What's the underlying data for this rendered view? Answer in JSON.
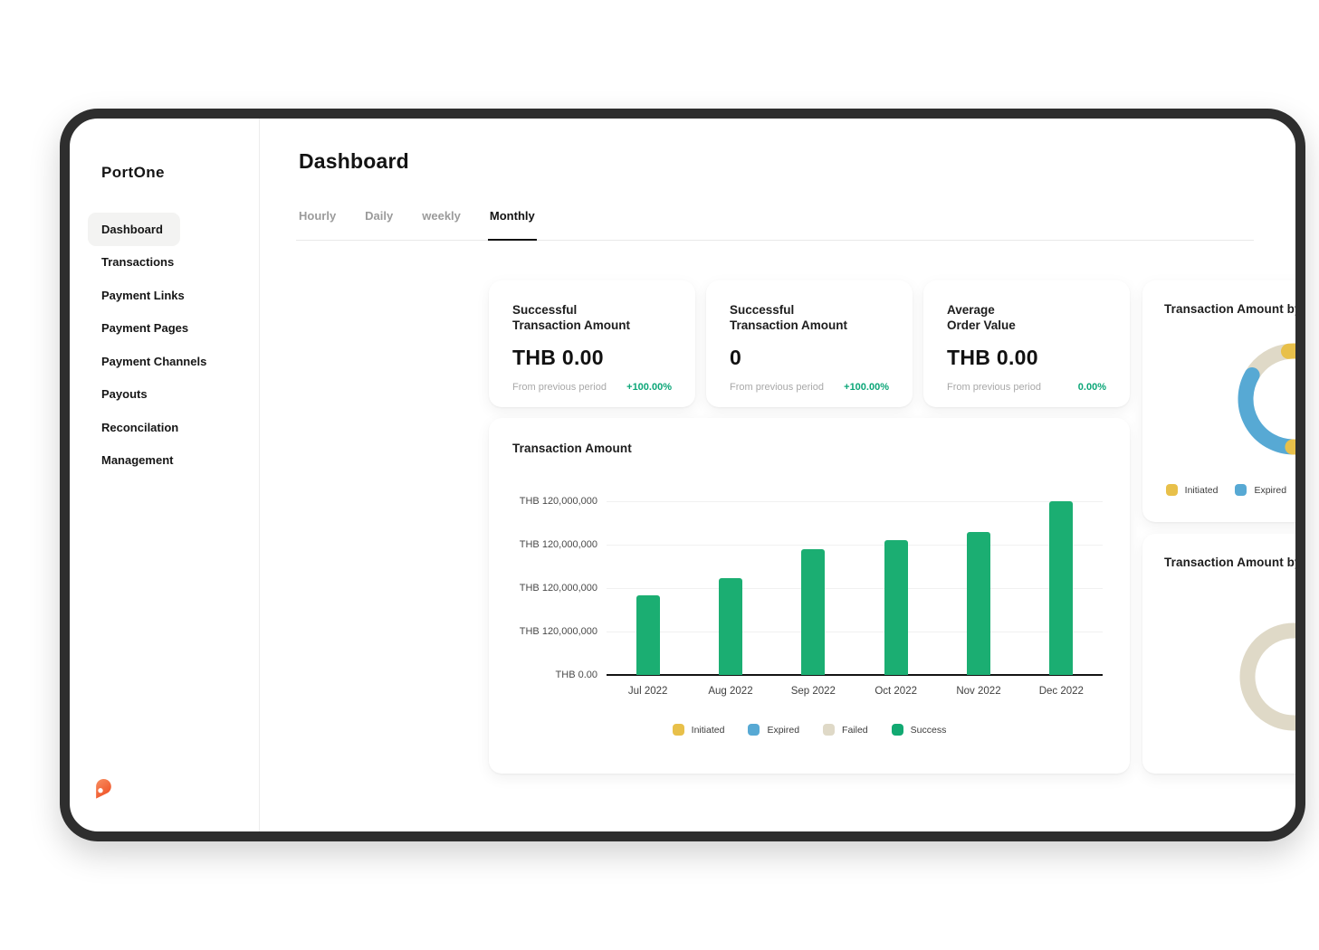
{
  "brand": {
    "logo_text": "PortOne"
  },
  "sidebar": {
    "items": [
      {
        "label": "Dashboard",
        "active": true
      },
      {
        "label": "Transactions",
        "active": false
      },
      {
        "label": "Payment Links",
        "active": false
      },
      {
        "label": "Payment Pages",
        "active": false
      },
      {
        "label": "Payment Channels",
        "active": false
      },
      {
        "label": "Payouts",
        "active": false
      },
      {
        "label": "Reconcilation",
        "active": false
      },
      {
        "label": "Management",
        "active": false
      }
    ]
  },
  "header": {
    "title": "Dashboard",
    "tabs": [
      {
        "label": "Hourly",
        "active": false
      },
      {
        "label": "Daily",
        "active": false
      },
      {
        "label": "weekly",
        "active": false
      },
      {
        "label": "Monthly",
        "active": true
      }
    ]
  },
  "stat_cards": [
    {
      "label_line1": "Successful",
      "label_line2": "Transaction Amount",
      "value": "THB 0.00",
      "footnote": "From previous period",
      "change": "+100.00%"
    },
    {
      "label_line1": "Successful",
      "label_line2": "Transaction Amount",
      "value": "0",
      "footnote": "From previous period",
      "change": "+100.00%"
    },
    {
      "label_line1": "Average",
      "label_line2": "Order Value",
      "value": "THB 0.00",
      "footnote": "From previous period",
      "change": "0.00%"
    }
  ],
  "chart_data": [
    {
      "type": "bar",
      "title": "Transaction Amount",
      "categories": [
        "Jul 2022",
        "Aug 2022",
        "Sep 2022",
        "Oct 2022",
        "Nov 2022",
        "Dec 2022"
      ],
      "series": [
        {
          "name": "Success",
          "color": "#1bae72",
          "values": [
            55000000,
            67000000,
            87000000,
            93000000,
            99000000,
            120000000
          ]
        }
      ],
      "ylim": [
        0,
        120000000
      ],
      "y_tick_labels": [
        "THB 120,000,000",
        "THB 120,000,000",
        "THB 120,000,000",
        "THB 120,000,000",
        "THB 0.00"
      ],
      "grid": true,
      "legend_position": "bottom",
      "legend": [
        {
          "label": "Initiated",
          "color": "#e8c04a"
        },
        {
          "label": "Expired",
          "color": "#57a9d4"
        },
        {
          "label": "Failed",
          "color": "#dfd9c7"
        },
        {
          "label": "Success",
          "color": "#12a972"
        }
      ]
    },
    {
      "type": "pie",
      "title": "Transaction Amount by Transaction Status",
      "segments": [
        {
          "label": "Initiated",
          "value": 52,
          "color": "#e8c04a"
        },
        {
          "label": "Expired",
          "value": 33,
          "color": "#57a9d4"
        },
        {
          "label": "Failed",
          "value": 15,
          "color": "#dfd9c7"
        },
        {
          "label": "Success",
          "value": 0,
          "color": "#12a972"
        }
      ],
      "legend_position": "bottom",
      "legend": [
        {
          "label": "Initiated",
          "color": "#e8c04a"
        },
        {
          "label": "Expired",
          "color": "#57a9d4"
        },
        {
          "label": "Failed",
          "color": "#dfd9c7"
        },
        {
          "label": "Success",
          "color": "#12a972"
        }
      ]
    },
    {
      "type": "pie",
      "title": "Transaction Amount by Payment Channel",
      "segments": [
        {
          "label": "",
          "value": 100,
          "color": "#dfd9c7"
        }
      ],
      "legend_position": "none",
      "legend": []
    }
  ],
  "colors": {
    "frame": "#2e2e2e",
    "success_green": "#12a972",
    "bar_green": "#1bae72",
    "initiated_yellow": "#e8c04a",
    "expired_blue": "#57a9d4",
    "failed_beige": "#dfd9c7",
    "change_green": "#0ca678",
    "logo_orange": "#f26231"
  }
}
